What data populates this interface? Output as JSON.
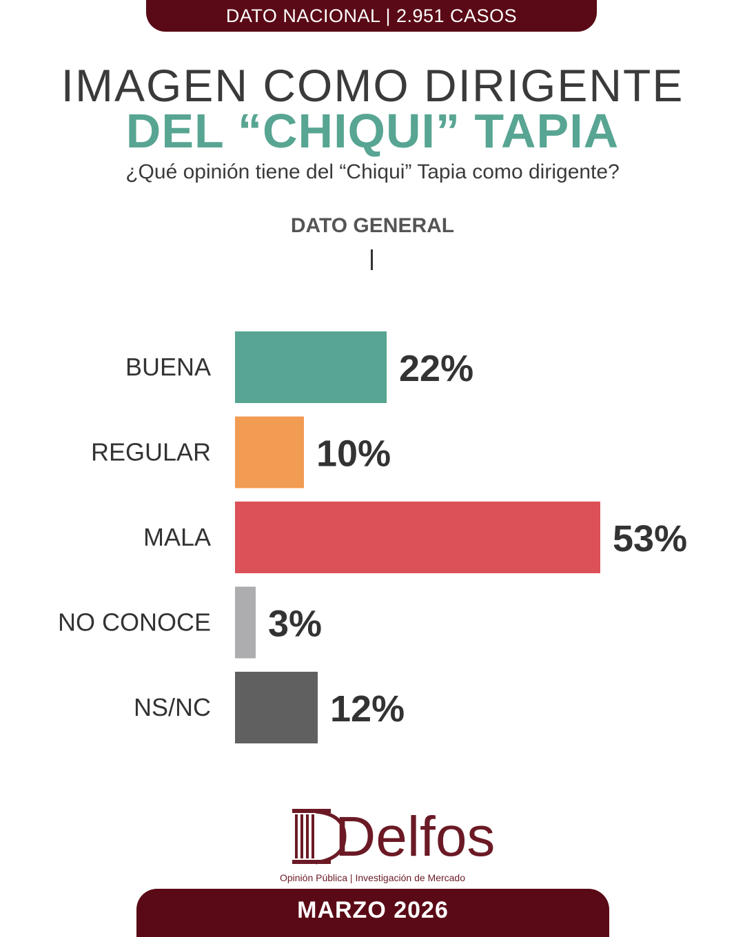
{
  "header": {
    "banner": "DATO NACIONAL | 2.951 CASOS",
    "title_line1": "IMAGEN COMO DIRIGENTE",
    "title_line2": "DEL “CHIQUI” TAPIA",
    "question": "¿Qué opinión tiene del “Chiqui” Tapia como dirigente?",
    "section_label": "DATO GENERAL"
  },
  "chart_data": {
    "type": "bar",
    "orientation": "horizontal",
    "categories": [
      "BUENA",
      "REGULAR",
      "MALA",
      "NO CONOCE",
      "NS/NC"
    ],
    "values": [
      22,
      10,
      53,
      3,
      12
    ],
    "value_labels": [
      "22%",
      "10%",
      "53%",
      "3%",
      "12%"
    ],
    "colors": [
      "#57a592",
      "#f29b52",
      "#dc5057",
      "#adadb0",
      "#606060"
    ],
    "unit": "%"
  },
  "footer": {
    "logo_text": "Delfos",
    "tagline": "Opinión Pública | Investigación de Mercado",
    "date": "MARZO 2026"
  },
  "colors": {
    "brand_dark": "#5a0a16",
    "accent_teal": "#57a592",
    "logo": "#6b1a25"
  }
}
